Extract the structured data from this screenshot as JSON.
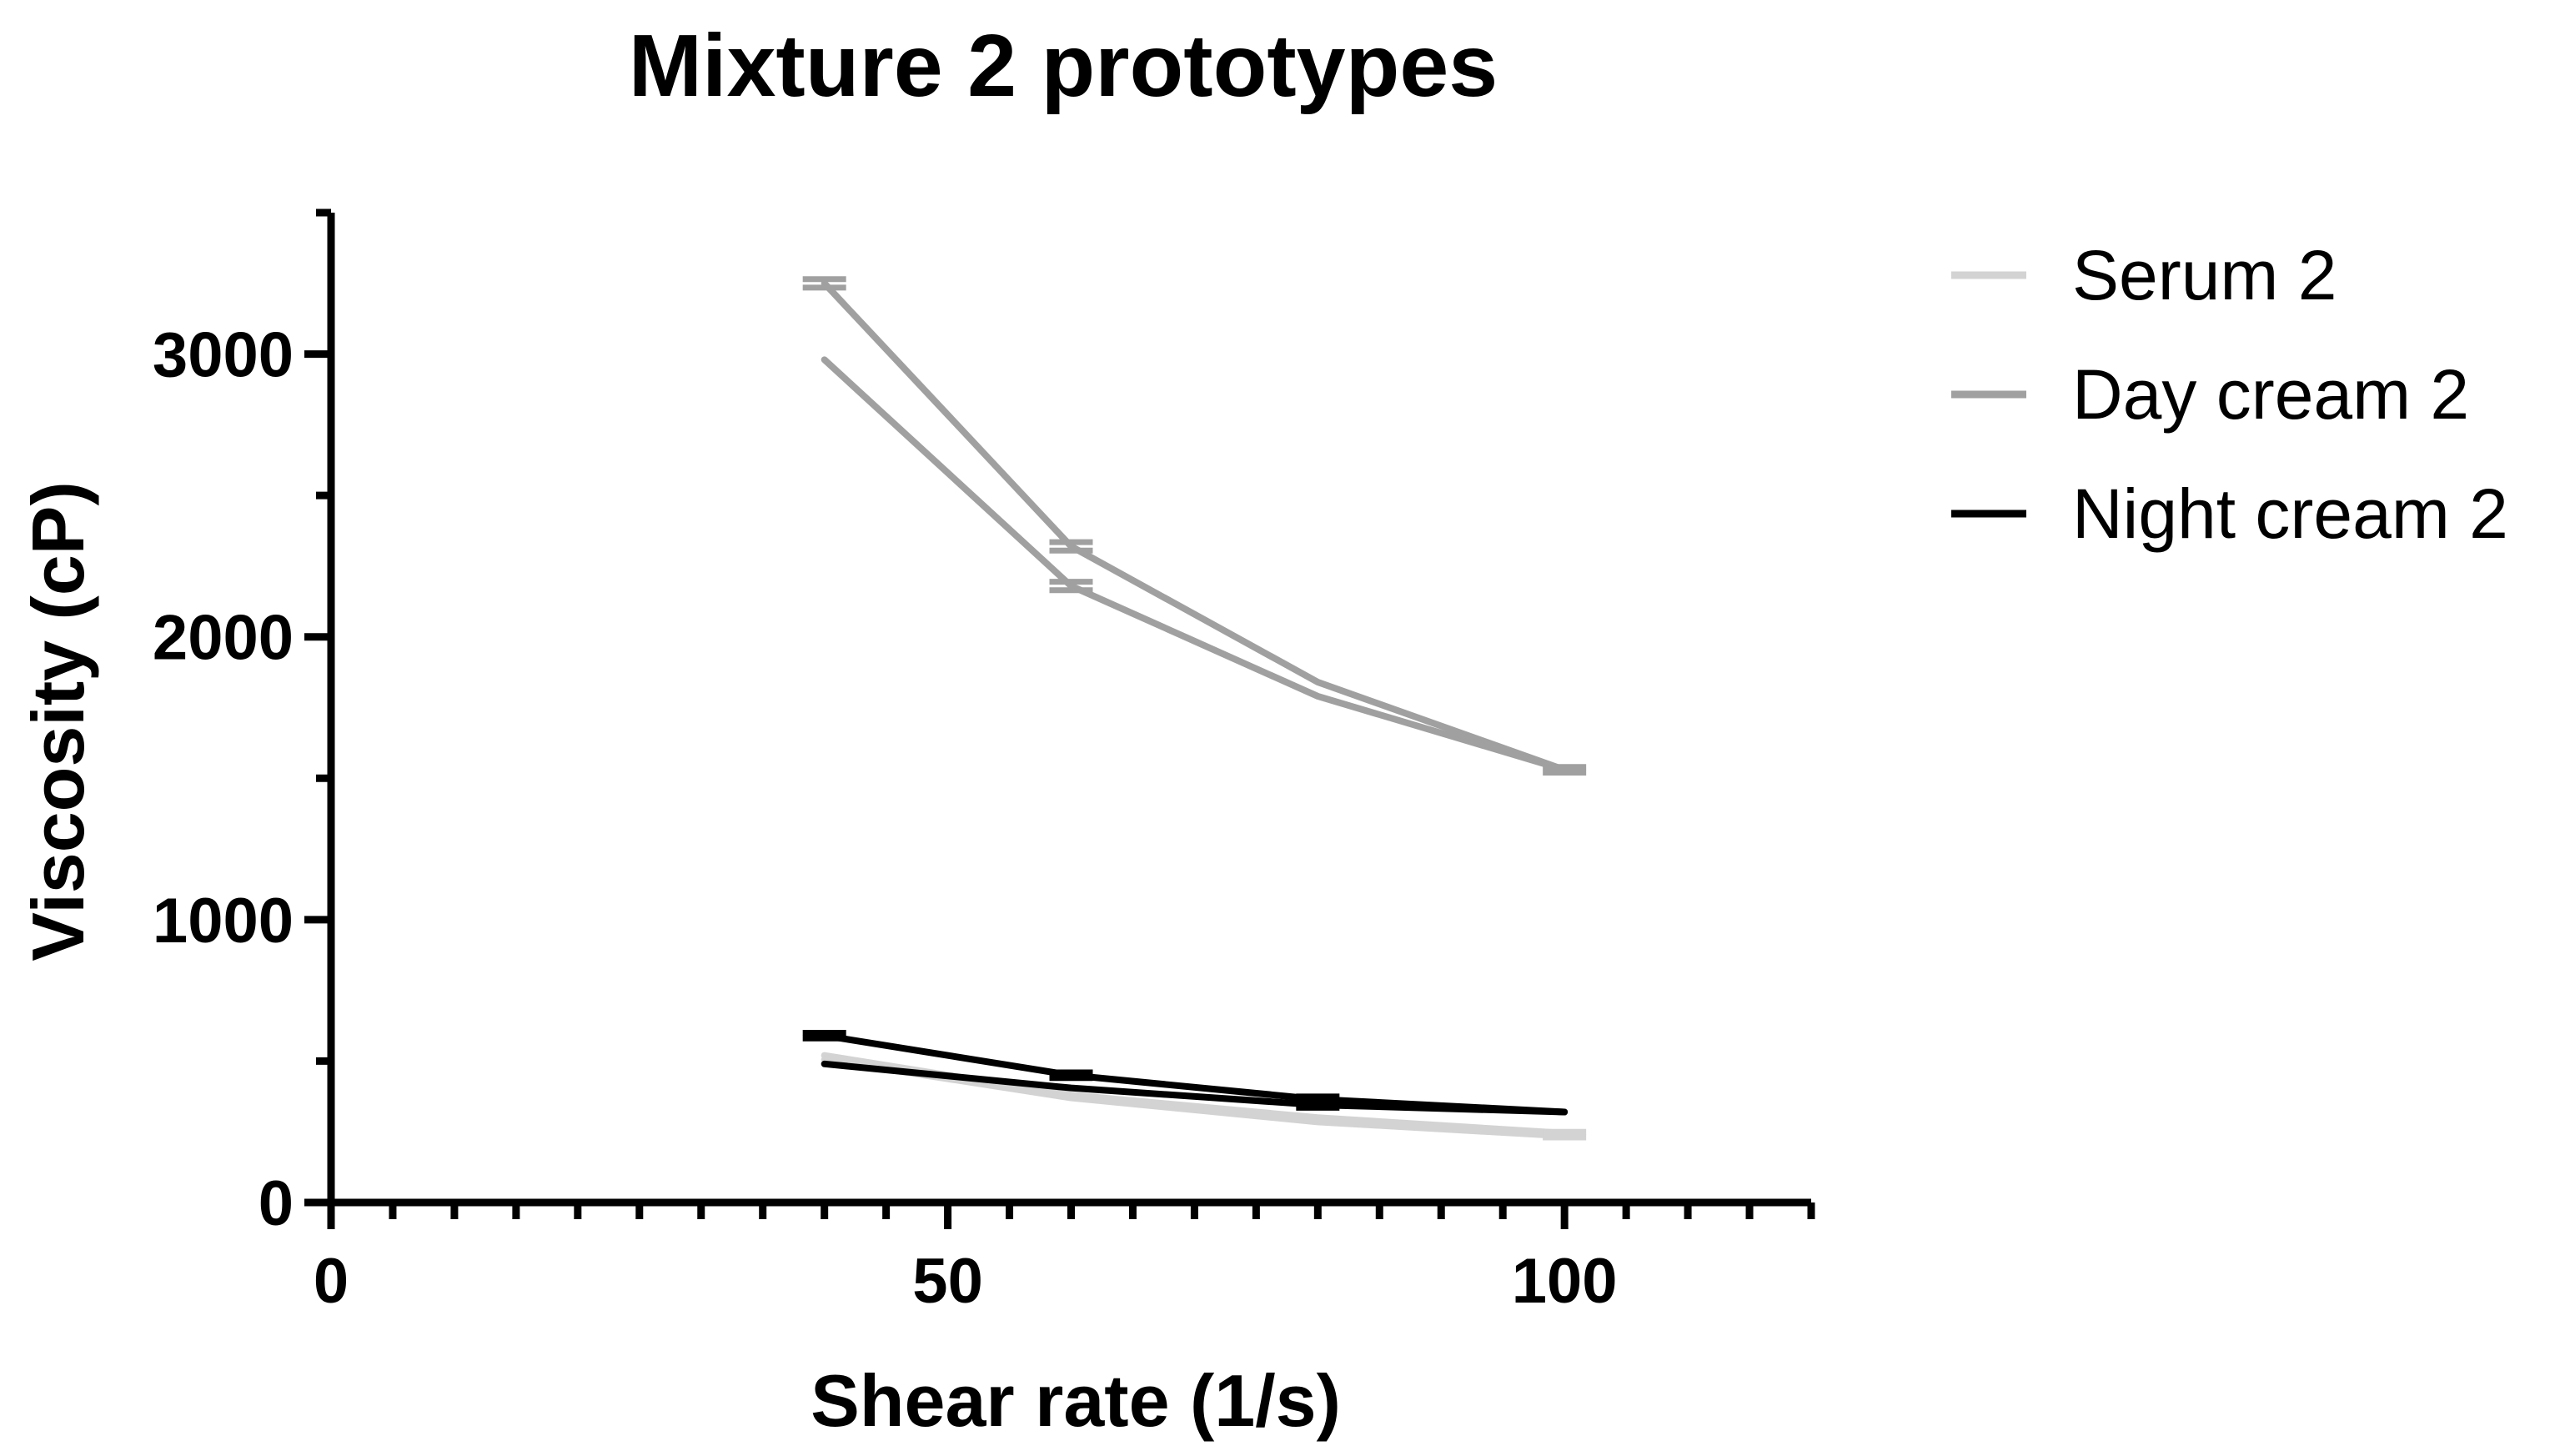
{
  "chart_data": {
    "type": "line",
    "title": "Mixture 2 prototypes",
    "xlabel": "Shear rate (1/s)",
    "ylabel": "Viscosity (cP)",
    "xlim": [
      0,
      120
    ],
    "ylim": [
      0,
      3500
    ],
    "x_ticks": [
      0,
      50,
      100
    ],
    "x_tick_labels": [
      "0",
      "50",
      "100"
    ],
    "y_ticks": [
      0,
      1000,
      2000,
      3000
    ],
    "y_tick_labels": [
      "0",
      "1000",
      "2000",
      "3000"
    ],
    "grid": false,
    "legend_position": "right",
    "series": [
      {
        "name": "Serum 2",
        "color": "#d3d3d3",
        "lines": [
          {
            "x": [
              40,
              60,
              80,
              100
            ],
            "y": [
              520,
              380,
              300,
              245
            ]
          },
          {
            "x": [
              40,
              60,
              80,
              100
            ],
            "y": [
              505,
              370,
              285,
              235
            ]
          }
        ],
        "error_points": [
          {
            "x": 100,
            "y": 240,
            "err": 10
          }
        ]
      },
      {
        "name": "Day cream 2",
        "color": "#a0a0a0",
        "lines": [
          {
            "x": [
              40,
              60,
              80,
              100
            ],
            "y": [
              3250,
              2320,
              1840,
              1530
            ]
          },
          {
            "x": [
              40,
              60,
              80,
              100
            ],
            "y": [
              2980,
              2180,
              1790,
              1530
            ]
          }
        ],
        "error_points": [
          {
            "x": 40,
            "y": 3250,
            "err": 15
          },
          {
            "x": 60,
            "y": 2320,
            "err": 15
          },
          {
            "x": 60,
            "y": 2180,
            "err": 15
          },
          {
            "x": 100,
            "y": 1530,
            "err": 10
          }
        ]
      },
      {
        "name": "Night cream 2",
        "color": "#000000",
        "lines": [
          {
            "x": [
              40,
              60,
              80,
              100
            ],
            "y": [
              590,
              450,
              365,
              320
            ]
          },
          {
            "x": [
              40,
              60,
              80,
              100
            ],
            "y": [
              490,
              405,
              345,
              320
            ]
          }
        ],
        "error_points": [
          {
            "x": 40,
            "y": 590,
            "err": 10
          },
          {
            "x": 60,
            "y": 450,
            "err": 10
          },
          {
            "x": 80,
            "y": 365,
            "err": 10
          },
          {
            "x": 80,
            "y": 345,
            "err": 10
          }
        ]
      }
    ]
  }
}
